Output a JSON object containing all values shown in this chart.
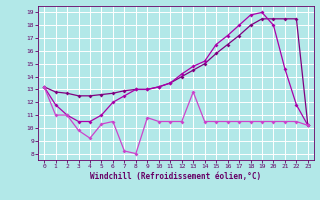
{
  "xlabel": "Windchill (Refroidissement éolien,°C)",
  "xlim": [
    -0.5,
    23.5
  ],
  "ylim": [
    7.5,
    19.5
  ],
  "yticks": [
    8,
    9,
    10,
    11,
    12,
    13,
    14,
    15,
    16,
    17,
    18,
    19
  ],
  "xticks": [
    0,
    1,
    2,
    3,
    4,
    5,
    6,
    7,
    8,
    9,
    10,
    11,
    12,
    13,
    14,
    15,
    16,
    17,
    18,
    19,
    20,
    21,
    22,
    23
  ],
  "bg_color": "#b2e8e8",
  "grid_color": "#ffffff",
  "line_color1": "#800080",
  "line_color2": "#aa00aa",
  "line_color3": "#cc44cc",
  "line1_x": [
    0,
    1,
    2,
    3,
    4,
    5,
    6,
    7,
    8,
    9,
    10,
    11,
    12,
    13,
    14,
    15,
    16,
    17,
    18,
    19,
    20,
    21,
    22,
    23
  ],
  "line1_y": [
    13.2,
    12.8,
    12.7,
    12.5,
    12.5,
    12.6,
    12.7,
    12.9,
    13.0,
    13.0,
    13.2,
    13.5,
    14.0,
    14.5,
    15.0,
    15.8,
    16.5,
    17.2,
    18.0,
    18.5,
    18.5,
    18.5,
    18.5,
    10.2
  ],
  "line2_x": [
    0,
    1,
    2,
    3,
    4,
    5,
    6,
    7,
    8,
    9,
    10,
    11,
    12,
    13,
    14,
    15,
    16,
    17,
    18,
    19,
    20,
    21,
    22,
    23
  ],
  "line2_y": [
    13.2,
    11.8,
    11.0,
    10.5,
    10.5,
    11.0,
    12.0,
    12.5,
    13.0,
    13.0,
    13.2,
    13.5,
    14.2,
    14.8,
    15.2,
    16.5,
    17.2,
    18.0,
    18.8,
    19.0,
    18.0,
    14.6,
    11.8,
    10.2
  ],
  "line3_x": [
    0,
    1,
    2,
    3,
    4,
    5,
    6,
    7,
    8,
    9,
    10,
    11,
    12,
    13,
    14,
    15,
    16,
    17,
    18,
    19,
    20,
    21,
    22,
    23
  ],
  "line3_y": [
    13.2,
    11.0,
    11.0,
    9.8,
    9.2,
    10.3,
    10.5,
    8.2,
    8.0,
    10.8,
    10.5,
    10.5,
    10.5,
    12.8,
    10.5,
    10.5,
    10.5,
    10.5,
    10.5,
    10.5,
    10.5,
    10.5,
    10.5,
    10.2
  ]
}
